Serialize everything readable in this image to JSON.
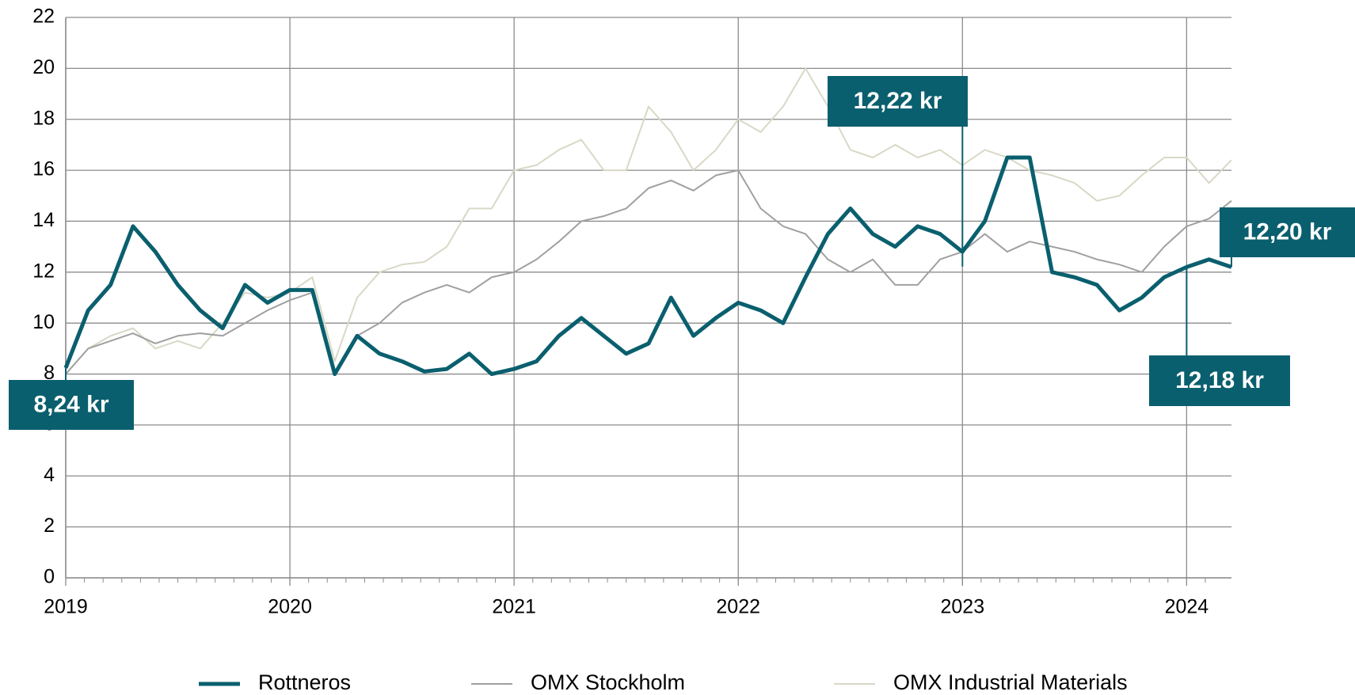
{
  "chart_data": {
    "type": "line",
    "x": [
      2019.0,
      2019.1,
      2019.2,
      2019.3,
      2019.4,
      2019.5,
      2019.6,
      2019.7,
      2019.8,
      2019.9,
      2020.0,
      2020.1,
      2020.2,
      2020.3,
      2020.4,
      2020.5,
      2020.6,
      2020.7,
      2020.8,
      2020.9,
      2021.0,
      2021.1,
      2021.2,
      2021.3,
      2021.4,
      2021.5,
      2021.6,
      2021.7,
      2021.8,
      2021.9,
      2022.0,
      2022.1,
      2022.2,
      2022.3,
      2022.4,
      2022.5,
      2022.6,
      2022.7,
      2022.8,
      2022.9,
      2023.0,
      2023.1,
      2023.2,
      2023.3,
      2023.4,
      2023.5,
      2023.6,
      2023.7,
      2023.8,
      2023.9,
      2024.0,
      2024.1,
      2024.2
    ],
    "series": [
      {
        "name": "Rottneros",
        "color": "#0a5f6e",
        "values": [
          8.24,
          10.5,
          11.5,
          13.8,
          12.8,
          11.5,
          10.5,
          9.8,
          11.5,
          10.8,
          11.3,
          11.3,
          8.0,
          9.5,
          8.8,
          8.5,
          8.1,
          8.2,
          8.8,
          8.0,
          8.2,
          8.5,
          9.5,
          10.2,
          9.5,
          8.8,
          9.2,
          11.0,
          9.5,
          10.2,
          10.8,
          10.5,
          10.0,
          11.8,
          13.5,
          14.5,
          13.5,
          13.0,
          13.8,
          13.5,
          12.8,
          14.0,
          16.5,
          16.5,
          12.0,
          11.8,
          11.5,
          10.5,
          11.0,
          11.8,
          12.2,
          12.5,
          12.2
        ]
      },
      {
        "name": "OMX Stockholm",
        "color": "#a0a0a0",
        "values": [
          8.0,
          9.0,
          9.3,
          9.6,
          9.2,
          9.5,
          9.6,
          9.5,
          10.0,
          10.5,
          10.9,
          11.2,
          8.0,
          9.5,
          10.0,
          10.8,
          11.2,
          11.5,
          11.2,
          11.8,
          12.0,
          12.5,
          13.2,
          14.0,
          14.2,
          14.5,
          15.3,
          15.6,
          15.2,
          15.8,
          16.0,
          14.5,
          13.8,
          13.5,
          12.5,
          12.0,
          12.5,
          11.5,
          11.5,
          12.5,
          12.8,
          13.5,
          12.8,
          13.2,
          13.0,
          12.8,
          12.5,
          12.3,
          12.0,
          13.0,
          13.8,
          14.1,
          14.8
        ]
      },
      {
        "name": "OMX Industrial Materials",
        "color": "#d9d8c6",
        "values": [
          8.0,
          9.0,
          9.5,
          9.8,
          9.0,
          9.3,
          9.0,
          10.0,
          11.2,
          11.0,
          11.2,
          11.8,
          8.5,
          11.0,
          12.0,
          12.3,
          12.4,
          13.0,
          14.5,
          14.5,
          16.0,
          16.2,
          16.8,
          17.2,
          16.0,
          16.0,
          18.5,
          17.5,
          16.0,
          16.8,
          18.0,
          17.5,
          18.5,
          20.0,
          18.5,
          16.8,
          16.5,
          17.0,
          16.5,
          16.8,
          16.2,
          16.8,
          16.5,
          16.0,
          15.8,
          15.5,
          14.8,
          15.0,
          15.8,
          16.5,
          16.5,
          15.5,
          16.4
        ]
      }
    ],
    "xlim": [
      2019,
      2024.2
    ],
    "xticks": [
      2019,
      2020,
      2021,
      2022,
      2023,
      2024
    ],
    "ylim": [
      0,
      22
    ],
    "yticks": [
      0,
      2,
      4,
      6,
      8,
      10,
      12,
      14,
      16,
      18,
      20,
      22
    ],
    "grid": true,
    "legend": "bottom",
    "annotations": [
      {
        "text": "8,24 kr",
        "x": 2019.0,
        "y": 8.24
      },
      {
        "text": "12,22 kr",
        "x": 2023.0,
        "y": 12.22
      },
      {
        "text": "12,20 kr",
        "x": 2024.2,
        "y": 12.2
      },
      {
        "text": "12,18 kr",
        "x": 2024.0,
        "y": 12.18
      }
    ]
  }
}
